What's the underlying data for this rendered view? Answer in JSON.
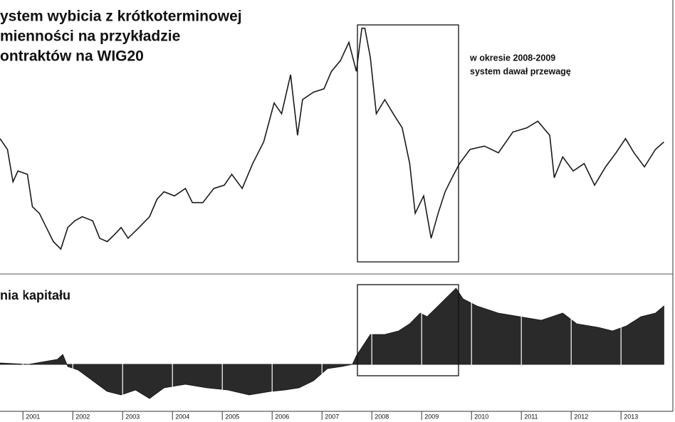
{
  "chart_data": [
    {
      "type": "line",
      "title_lines": [
        "ystem wybicia z krótkoterminowej",
        "mienności na przykładzie",
        "ontraktów na WIG20"
      ],
      "annotations": [
        "w okresie 2008-2009",
        "system dawał przewagę"
      ],
      "color": "#1a1a1a",
      "xlim": [
        2000.54,
        2014.04
      ],
      "ylim": [
        800,
        4100
      ],
      "x": [
        2000.54,
        2000.69,
        2000.8,
        2000.9,
        2001.09,
        2001.19,
        2001.33,
        2001.47,
        2001.61,
        2001.76,
        2001.9,
        2002.04,
        2002.19,
        2002.4,
        2002.54,
        2002.69,
        2002.83,
        2002.97,
        2003.11,
        2003.33,
        2003.54,
        2003.69,
        2003.83,
        2004.04,
        2004.26,
        2004.4,
        2004.61,
        2004.83,
        2005.04,
        2005.19,
        2005.4,
        2005.61,
        2005.83,
        2006.04,
        2006.19,
        2006.37,
        2006.51,
        2006.61,
        2006.83,
        2007.04,
        2007.19,
        2007.37,
        2007.54,
        2007.69,
        2007.8,
        2007.86,
        2007.97,
        2008.09,
        2008.26,
        2008.43,
        2008.61,
        2008.76,
        2008.87,
        2009.04,
        2009.19,
        2009.33,
        2009.47,
        2009.61,
        2009.76,
        2009.97,
        2010.26,
        2010.54,
        2010.83,
        2011.11,
        2011.33,
        2011.57,
        2011.66,
        2011.83,
        2012.04,
        2012.26,
        2012.47,
        2012.69,
        2012.9,
        2013.09,
        2013.26,
        2013.47,
        2013.69,
        2013.86
      ],
      "values": [
        2430,
        2300,
        1910,
        2040,
        2000,
        1610,
        1530,
        1360,
        1190,
        1100,
        1360,
        1440,
        1490,
        1440,
        1230,
        1190,
        1270,
        1360,
        1230,
        1360,
        1490,
        1700,
        1790,
        1740,
        1830,
        1660,
        1660,
        1830,
        1870,
        2000,
        1830,
        2130,
        2390,
        2860,
        2730,
        3200,
        2470,
        2900,
        2990,
        3030,
        3240,
        3370,
        3590,
        3240,
        3760,
        3760,
        3410,
        2730,
        2900,
        2730,
        2560,
        2130,
        1530,
        1740,
        1230,
        1530,
        1790,
        1960,
        2130,
        2300,
        2340,
        2260,
        2510,
        2560,
        2640,
        2470,
        1960,
        2210,
        2040,
        2130,
        1870,
        2090,
        2260,
        2430,
        2260,
        2090,
        2300,
        2390
      ]
    },
    {
      "type": "area",
      "title": "nia kapitału",
      "color": "#2a2a2a",
      "xlim": [
        2000.54,
        2014.04
      ],
      "ylim": [
        -60,
        120
      ],
      "xticks": [
        {
          "value": 2001,
          "label": "2001"
        },
        {
          "value": 2002,
          "label": "2002"
        },
        {
          "value": 2003,
          "label": "2003"
        },
        {
          "value": 2004,
          "label": "2004"
        },
        {
          "value": 2005,
          "label": "2005"
        },
        {
          "value": 2006,
          "label": "2006"
        },
        {
          "value": 2007,
          "label": "2007"
        },
        {
          "value": 2008,
          "label": "2008"
        },
        {
          "value": 2009,
          "label": "2009"
        },
        {
          "value": 2010,
          "label": "2010"
        },
        {
          "value": 2011,
          "label": "2011"
        },
        {
          "value": 2012,
          "label": "2012"
        },
        {
          "value": 2013,
          "label": "2013"
        }
      ],
      "x": [
        2000.54,
        2001.11,
        2001.69,
        2001.8,
        2001.9,
        2002.11,
        2002.4,
        2002.69,
        2002.97,
        2003.26,
        2003.54,
        2003.83,
        2004.26,
        2004.69,
        2005.11,
        2005.54,
        2005.97,
        2006.26,
        2006.54,
        2006.83,
        2007.11,
        2007.4,
        2007.61,
        2007.69,
        2007.83,
        2007.97,
        2008.26,
        2008.54,
        2008.76,
        2008.97,
        2009.11,
        2009.4,
        2009.69,
        2009.83,
        2010.11,
        2010.54,
        2010.97,
        2011.4,
        2011.83,
        2012.11,
        2012.54,
        2012.83,
        2013.11,
        2013.4,
        2013.69,
        2013.86
      ],
      "values": [
        2,
        0,
        7,
        14,
        -3,
        -8,
        -23,
        -38,
        -43,
        -36,
        -48,
        -33,
        -28,
        -33,
        -36,
        -43,
        -38,
        -36,
        -33,
        -23,
        -6,
        -3,
        0,
        12,
        27,
        42,
        42,
        47,
        57,
        72,
        67,
        87,
        107,
        92,
        82,
        72,
        67,
        62,
        72,
        57,
        52,
        47,
        54,
        67,
        72,
        82
      ]
    }
  ]
}
